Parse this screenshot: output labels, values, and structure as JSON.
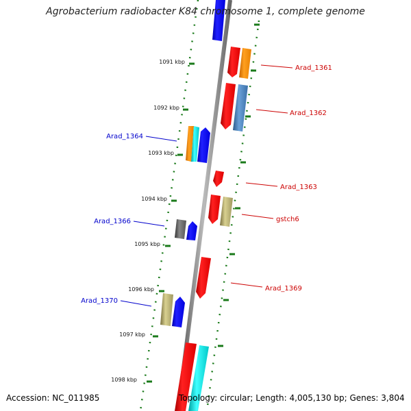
{
  "title": "Agrobacterium radiobacter K84 chromosome 1, complete genome",
  "footer": {
    "accession": "Accession: NC_011985",
    "topology": "Topology: circular; Length: 4,005,130 bp; Genes: 3,804"
  },
  "colors": {
    "forward_label": "#cc0000",
    "reverse_label": "#0000cc",
    "backbone": "#888888",
    "tick": "#1a7a1a"
  },
  "kbp_ticks": [
    "1091 kbp",
    "1092 kbp",
    "1093 kbp",
    "1094 kbp",
    "1095 kbp",
    "1096 kbp",
    "1097 kbp",
    "1098 kbp"
  ],
  "labels": {
    "forward": [
      "Arad_1361",
      "Arad_1362",
      "Arad_1363",
      "gstch6",
      "Arad_1369"
    ],
    "reverse": [
      "Arad_1364",
      "Arad_1366",
      "Arad_1370"
    ]
  }
}
